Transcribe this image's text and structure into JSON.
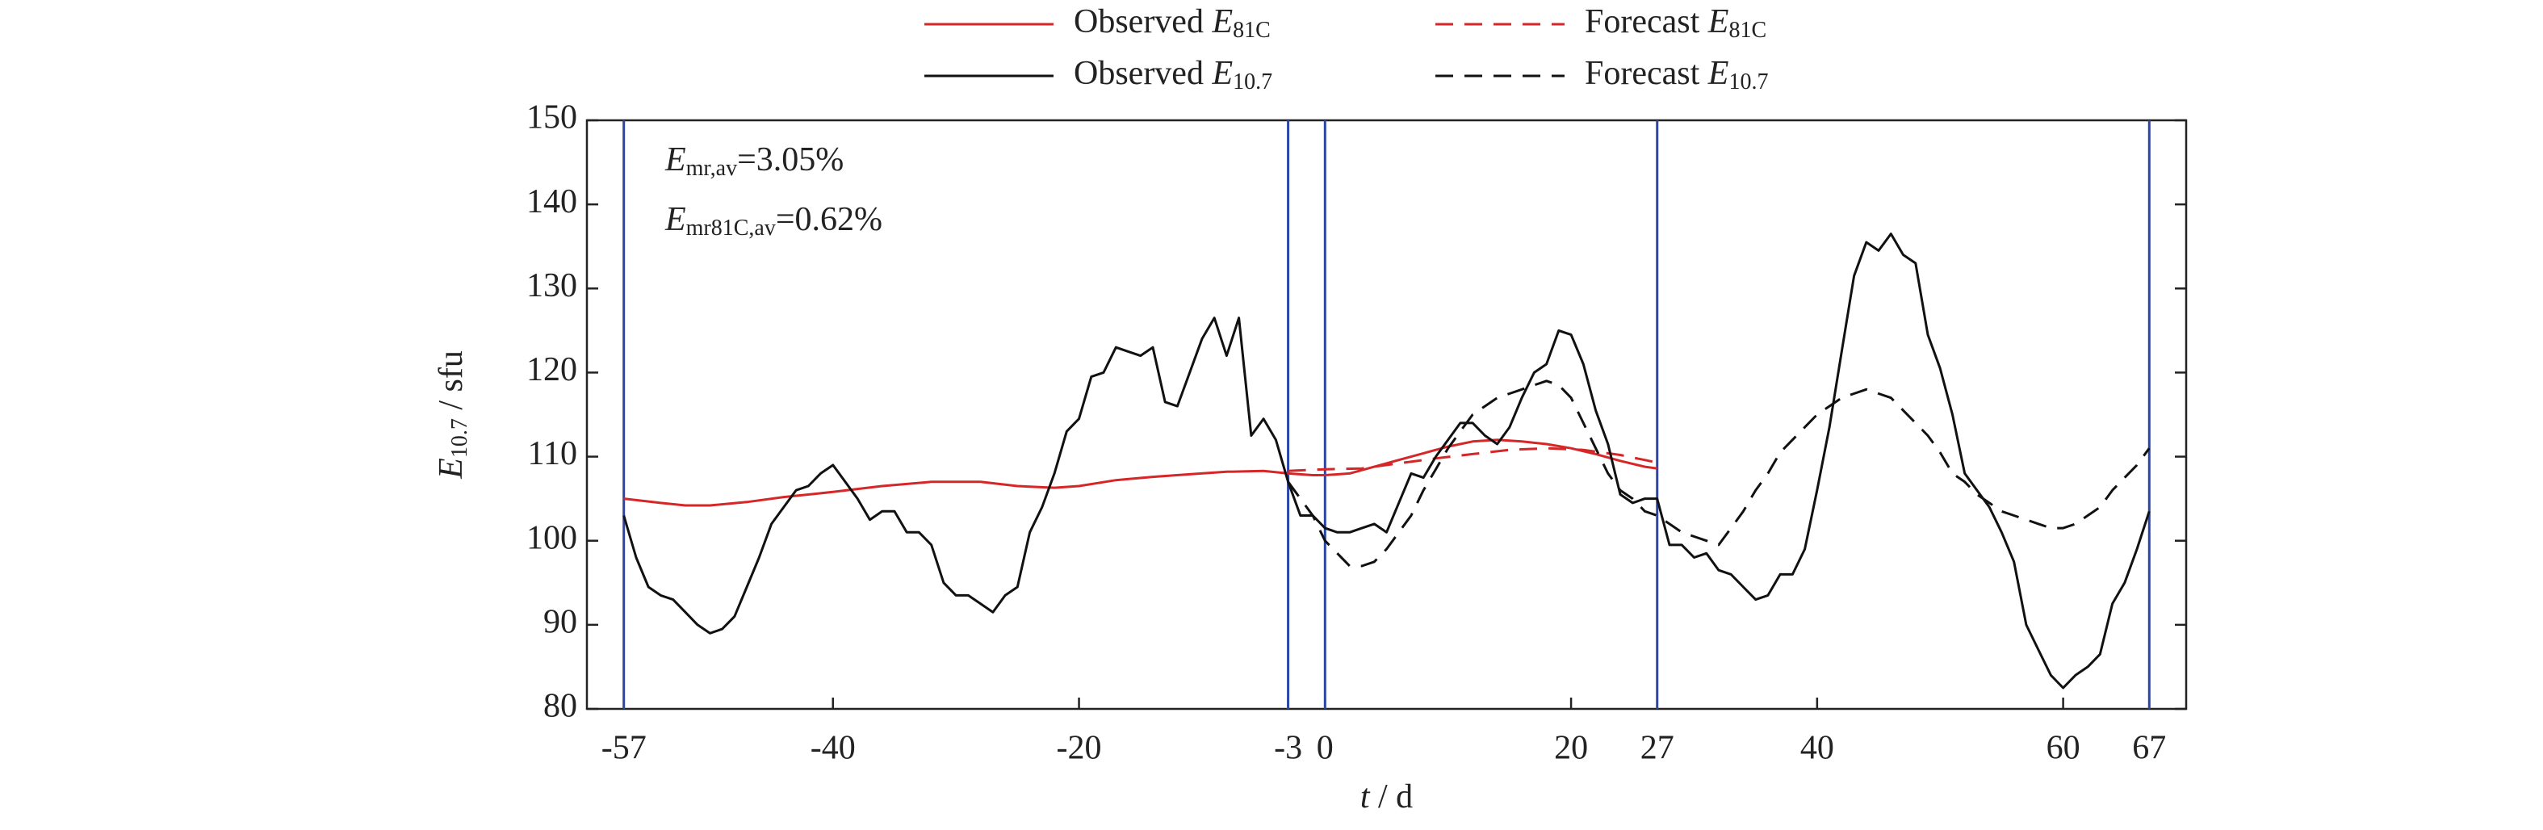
{
  "chart_data": {
    "type": "line",
    "xlabel": {
      "symbol": "t",
      "text": " / d"
    },
    "ylabel": {
      "symbol": "E",
      "subscript": "10.7",
      "text": " / sfu"
    },
    "annotations": [
      {
        "symbol": "E",
        "subscript": "mr,av",
        "text": "=3.05%"
      },
      {
        "symbol": "E",
        "subscript": "mr81C,av",
        "text": "=0.62%"
      }
    ],
    "xlim": [
      -60,
      70
    ],
    "ylim": [
      80,
      150
    ],
    "xticks": [
      -57,
      -40,
      -20,
      -3,
      0,
      20,
      27,
      40,
      60,
      67
    ],
    "yticks": [
      80,
      90,
      100,
      110,
      120,
      130,
      140,
      150
    ],
    "vlines": [
      -57,
      -3,
      0,
      27,
      67
    ],
    "vline_color": "#2b45a8",
    "series": [
      {
        "name": "Observed",
        "symbol": "E",
        "subscript": "81C",
        "color": "#d62728",
        "dashed": false,
        "x": [
          -57,
          -54,
          -52,
          -50,
          -47,
          -44,
          -40,
          -36,
          -32,
          -28,
          -25,
          -22,
          -20,
          -17,
          -14,
          -11,
          -8,
          -5,
          -3,
          -1,
          0,
          2,
          4,
          6,
          8,
          10,
          12,
          14,
          16,
          18,
          20,
          22,
          24,
          26,
          27
        ],
        "values": [
          105,
          104.5,
          104.2,
          104.2,
          104.6,
          105.2,
          105.8,
          106.5,
          107,
          107,
          106.5,
          106.3,
          106.5,
          107.2,
          107.6,
          107.9,
          108.2,
          108.3,
          108,
          107.8,
          107.8,
          108,
          108.8,
          109.6,
          110.4,
          111.2,
          111.8,
          112,
          111.8,
          111.5,
          111,
          110.3,
          109.5,
          108.8,
          108.6
        ]
      },
      {
        "name": "Forecast",
        "symbol": "E",
        "subscript": "81C",
        "color": "#d62728",
        "dashed": true,
        "x": [
          -3,
          0,
          3,
          6,
          9,
          12,
          15,
          18,
          21,
          24,
          27
        ],
        "values": [
          108.3,
          108.5,
          108.6,
          109.2,
          109.8,
          110.3,
          110.8,
          111,
          110.8,
          110.2,
          109.3
        ]
      },
      {
        "name": "Observed",
        "symbol": "E",
        "subscript": "10.7",
        "color": "#111111",
        "dashed": false,
        "x": [
          -57,
          -56,
          -55,
          -54,
          -53,
          -52,
          -51,
          -50,
          -49,
          -48,
          -47,
          -46,
          -45,
          -44,
          -43,
          -42,
          -41,
          -40,
          -39,
          -38,
          -37,
          -36,
          -35,
          -34,
          -33,
          -32,
          -31,
          -30,
          -29,
          -28,
          -27,
          -26,
          -25,
          -24,
          -23,
          -22,
          -21,
          -20,
          -19,
          -18,
          -17,
          -16,
          -15,
          -14,
          -13,
          -12,
          -11,
          -10,
          -9,
          -8,
          -7,
          -6,
          -5,
          -4,
          -3,
          -2,
          -1,
          0,
          1,
          2,
          3,
          4,
          5,
          6,
          7,
          8,
          9,
          10,
          11,
          12,
          13,
          14,
          15,
          16,
          17,
          18,
          19,
          20,
          21,
          22,
          23,
          24,
          25,
          26,
          27,
          28,
          29,
          30,
          31,
          32,
          33,
          34,
          35,
          36,
          37,
          38,
          39,
          40,
          41,
          42,
          43,
          44,
          45,
          46,
          47,
          48,
          49,
          50,
          51,
          52,
          53,
          54,
          55,
          56,
          57,
          58,
          59,
          60,
          61,
          62,
          63,
          64,
          65,
          66,
          67
        ],
        "values": [
          103,
          98,
          94.5,
          93.5,
          93,
          91.5,
          90,
          89,
          89.5,
          91,
          94.5,
          98,
          102,
          104,
          106,
          106.5,
          108,
          109,
          107,
          105,
          102.5,
          103.5,
          103.5,
          101,
          101,
          99.5,
          95,
          93.5,
          93.5,
          92.5,
          91.5,
          93.5,
          94.5,
          101,
          104,
          108,
          113,
          114.5,
          119.5,
          120,
          123,
          122.5,
          122,
          123,
          116.5,
          116,
          120,
          124,
          126.5,
          122,
          126.5,
          112.5,
          114.5,
          112,
          107,
          103,
          103,
          101.5,
          101,
          101,
          101.5,
          102,
          101,
          104.5,
          108,
          107.5,
          110,
          112,
          114,
          114,
          112.5,
          111.5,
          113.5,
          117,
          120,
          121,
          125,
          124.5,
          121,
          115.5,
          111.5,
          105.5,
          104.5,
          105,
          105,
          99.5,
          99.5,
          98,
          98.5,
          96.5,
          96,
          94.5,
          93,
          93.5,
          96,
          96,
          99,
          106,
          113.5,
          122.5,
          131.5,
          135.5,
          134.5,
          136.5,
          134,
          133,
          124.5,
          120.5,
          115,
          108,
          106,
          104,
          101,
          97.5,
          90,
          87,
          84,
          82.5,
          84,
          85,
          86.5,
          92.5,
          95,
          99,
          103.5
        ]
      },
      {
        "name": "Forecast",
        "symbol": "E",
        "subscript": "10.7",
        "color": "#111111",
        "dashed": true,
        "x": [
          -3,
          -2,
          -1,
          0,
          1,
          2,
          3,
          4,
          5,
          6,
          7,
          8,
          9,
          10,
          11,
          12,
          13,
          14,
          15,
          16,
          17,
          18,
          19,
          20,
          21,
          22,
          23,
          24,
          25,
          26,
          27,
          28,
          29,
          30,
          31,
          32,
          33,
          34,
          35,
          36,
          37,
          38,
          39,
          40,
          41,
          42,
          43,
          44,
          45,
          46,
          47,
          48,
          49,
          50,
          51,
          52,
          53,
          54,
          55,
          56,
          57,
          58,
          59,
          60,
          61,
          62,
          63,
          64,
          65,
          66,
          67
        ],
        "values": [
          107,
          105,
          103,
          100,
          98.5,
          97,
          97,
          97.5,
          99,
          101,
          103,
          106,
          108.5,
          111,
          113,
          115,
          116,
          117,
          117.5,
          118,
          118.5,
          119,
          118.5,
          117,
          114,
          111,
          108,
          106,
          105,
          103.5,
          103,
          102,
          101,
          100.5,
          100,
          99.5,
          101.5,
          103.5,
          106,
          108,
          110.5,
          112,
          113.5,
          115,
          116,
          117,
          117.5,
          118,
          117.5,
          117,
          115.5,
          114,
          112.5,
          110.5,
          108,
          107,
          105.5,
          104.5,
          103.5,
          103,
          102.5,
          102,
          101.5,
          101.5,
          102,
          103,
          104,
          106,
          107.5,
          109,
          111
        ]
      }
    ]
  }
}
